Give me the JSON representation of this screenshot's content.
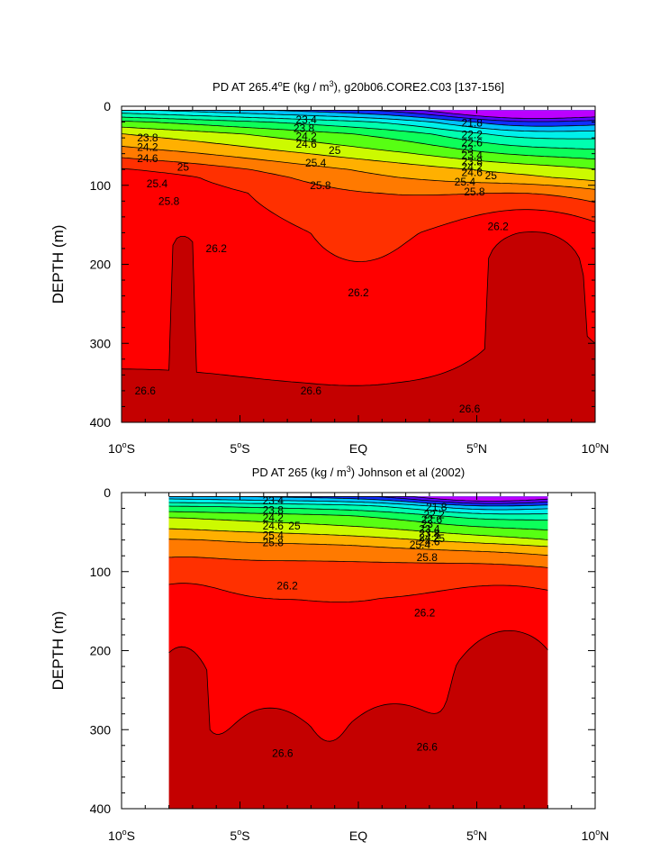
{
  "chart_data": [
    {
      "type": "contour",
      "title_parts": [
        "PD AT 265.4",
        "o",
        "E (kg / m",
        "3",
        "), g20b06.CORE2.C03 [137-156]"
      ],
      "ylabel": "DEPTH (m)",
      "xlim": [
        -10,
        10
      ],
      "ylim": [
        400,
        0
      ],
      "x_ticks": [
        {
          "value": -10,
          "num": "10",
          "sup": "o",
          "hem": "S"
        },
        {
          "value": -5,
          "num": "5",
          "sup": "o",
          "hem": "S"
        },
        {
          "value": 0,
          "num": "EQ",
          "sup": "",
          "hem": ""
        },
        {
          "value": 5,
          "num": "5",
          "sup": "o",
          "hem": "N"
        },
        {
          "value": 10,
          "num": "10",
          "sup": "o",
          "hem": "N"
        }
      ],
      "y_ticks": [
        0,
        100,
        200,
        300,
        400
      ],
      "data_x_range": [
        -10,
        10
      ],
      "data_depth_range": [
        5,
        400
      ],
      "levels": [
        21.8,
        22.2,
        22.6,
        23.0,
        23.4,
        23.8,
        24.2,
        24.6,
        25.0,
        25.4,
        25.8,
        26.2,
        26.6
      ],
      "contour_labels": [
        {
          "text": "23.4",
          "x": -2.2,
          "depth": 17
        },
        {
          "text": "23.8",
          "x": -2.3,
          "depth": 28
        },
        {
          "text": "24.2",
          "x": -2.2,
          "depth": 38
        },
        {
          "text": "24.6",
          "x": -2.2,
          "depth": 48
        },
        {
          "text": "25",
          "x": -1.0,
          "depth": 56
        },
        {
          "text": "25.4",
          "x": -1.8,
          "depth": 72
        },
        {
          "text": "25.8",
          "x": -1.6,
          "depth": 100
        },
        {
          "text": "23.8",
          "x": -8.9,
          "depth": 40
        },
        {
          "text": "24.2",
          "x": -8.9,
          "depth": 52
        },
        {
          "text": "24.6",
          "x": -8.9,
          "depth": 66
        },
        {
          "text": "25",
          "x": -7.4,
          "depth": 77
        },
        {
          "text": "25.4",
          "x": -8.5,
          "depth": 98
        },
        {
          "text": "25.8",
          "x": -8.0,
          "depth": 120
        },
        {
          "text": "21.8",
          "x": 4.8,
          "depth": 21
        },
        {
          "text": "22.2",
          "x": 4.8,
          "depth": 36
        },
        {
          "text": "22.6",
          "x": 4.8,
          "depth": 46
        },
        {
          "text": "23",
          "x": 4.6,
          "depth": 54
        },
        {
          "text": "23.4",
          "x": 4.8,
          "depth": 62
        },
        {
          "text": "23.8",
          "x": 4.8,
          "depth": 70
        },
        {
          "text": "24.2",
          "x": 4.8,
          "depth": 77
        },
        {
          "text": "24.6",
          "x": 4.8,
          "depth": 84
        },
        {
          "text": "25",
          "x": 5.6,
          "depth": 88
        },
        {
          "text": "25.4",
          "x": 4.5,
          "depth": 96
        },
        {
          "text": "25.8",
          "x": 4.9,
          "depth": 108
        },
        {
          "text": "26.2",
          "x": -6.0,
          "depth": 180
        },
        {
          "text": "26.2",
          "x": 0.0,
          "depth": 236
        },
        {
          "text": "26.2",
          "x": 5.9,
          "depth": 152
        },
        {
          "text": "26.6",
          "x": -9.0,
          "depth": 360
        },
        {
          "text": "26.6",
          "x": -2.0,
          "depth": 360
        },
        {
          "text": "26.6",
          "x": 4.7,
          "depth": 383
        }
      ]
    },
    {
      "type": "contour",
      "title_parts": [
        "PD AT 265 (kg / m",
        "3",
        ") Johnson et al (2002)"
      ],
      "ylabel": "DEPTH (m)",
      "xlim": [
        -10,
        10
      ],
      "ylim": [
        400,
        0
      ],
      "x_ticks": [
        {
          "value": -10,
          "num": "10",
          "sup": "o",
          "hem": "S"
        },
        {
          "value": -5,
          "num": "5",
          "sup": "o",
          "hem": "S"
        },
        {
          "value": 0,
          "num": "EQ",
          "sup": "",
          "hem": ""
        },
        {
          "value": 5,
          "num": "5",
          "sup": "o",
          "hem": "N"
        },
        {
          "value": 10,
          "num": "10",
          "sup": "o",
          "hem": "N"
        }
      ],
      "y_ticks": [
        0,
        100,
        200,
        300,
        400
      ],
      "data_x_range": [
        -8,
        8
      ],
      "data_depth_range": [
        5,
        400
      ],
      "levels": [
        21.8,
        22.2,
        22.6,
        23.0,
        23.4,
        23.8,
        24.2,
        24.6,
        25.0,
        25.4,
        25.8,
        26.2,
        26.6
      ],
      "contour_labels": [
        {
          "text": "23.4",
          "x": -3.6,
          "depth": 10
        },
        {
          "text": "23.8",
          "x": -3.6,
          "depth": 22
        },
        {
          "text": "24.2",
          "x": -3.6,
          "depth": 32
        },
        {
          "text": "24.6",
          "x": -3.6,
          "depth": 42
        },
        {
          "text": "25",
          "x": -2.7,
          "depth": 42
        },
        {
          "text": "25.4",
          "x": -3.6,
          "depth": 54
        },
        {
          "text": "25.8",
          "x": -3.6,
          "depth": 63
        },
        {
          "text": "21.8",
          "x": 3.3,
          "depth": 18
        },
        {
          "text": "22.2",
          "x": 3.2,
          "depth": 28
        },
        {
          "text": "22.6",
          "x": 3.1,
          "depth": 34
        },
        {
          "text": "23",
          "x": 2.9,
          "depth": 40
        },
        {
          "text": "23.4",
          "x": 3.0,
          "depth": 46
        },
        {
          "text": "23.8",
          "x": 3.0,
          "depth": 52
        },
        {
          "text": "24.2",
          "x": 3.0,
          "depth": 57
        },
        {
          "text": "24.6",
          "x": 3.0,
          "depth": 62
        },
        {
          "text": "25",
          "x": 3.4,
          "depth": 58
        },
        {
          "text": "25.4",
          "x": 2.6,
          "depth": 66
        },
        {
          "text": "25.8",
          "x": 2.9,
          "depth": 82
        },
        {
          "text": "26.2",
          "x": -3.0,
          "depth": 118
        },
        {
          "text": "26.2",
          "x": 2.8,
          "depth": 152
        },
        {
          "text": "26.6",
          "x": -3.2,
          "depth": 330
        },
        {
          "text": "26.6",
          "x": 2.9,
          "depth": 322
        }
      ]
    }
  ]
}
